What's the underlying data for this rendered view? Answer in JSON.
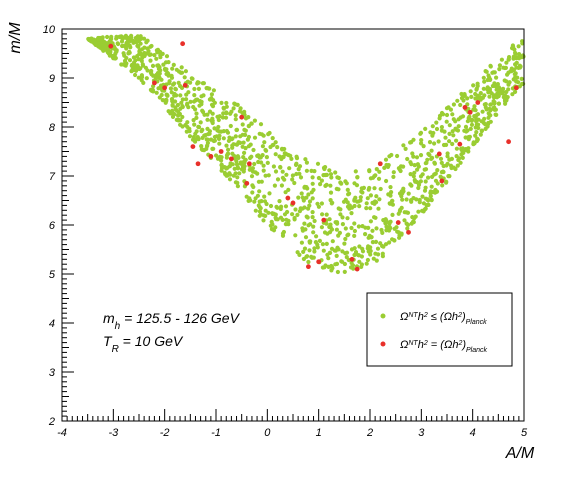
{
  "chart_data": {
    "type": "scatter",
    "title": "",
    "xlabel": "A/M",
    "ylabel": "m/M",
    "xlim": [
      -4,
      5
    ],
    "ylim": [
      2,
      10
    ],
    "x_ticks": [
      "-4",
      "-3",
      "-2",
      "-1",
      "0",
      "1",
      "2",
      "3",
      "4",
      "5"
    ],
    "y_ticks": [
      "2",
      "3",
      "4",
      "5",
      "6",
      "7",
      "8",
      "9",
      "10"
    ],
    "grid": false,
    "legend_position": "middle-right",
    "annotations": [
      {
        "text": "m",
        "sub": "h",
        "rest": " = 125.5 - 126 GeV"
      },
      {
        "text": "T",
        "sub": "R",
        "rest": " = 10 GeV"
      }
    ],
    "series": [
      {
        "name": "Ω^NT h² ≤ (Ωh²)_Planck",
        "color": "#9acd32",
        "generated": true,
        "n_points": 1500,
        "lower_envelope": [
          [
            -3.5,
            9.8
          ],
          [
            -2.5,
            9.0
          ],
          [
            -1.5,
            7.8
          ],
          [
            -0.8,
            7.0
          ],
          [
            0,
            6.0
          ],
          [
            0.8,
            5.2
          ],
          [
            1.5,
            5.0
          ],
          [
            2.2,
            5.3
          ],
          [
            3.0,
            6.2
          ],
          [
            3.8,
            7.3
          ],
          [
            4.5,
            8.3
          ],
          [
            5.0,
            8.9
          ]
        ],
        "upper_envelope": [
          [
            -3.5,
            9.8
          ],
          [
            -2.5,
            9.9
          ],
          [
            -1.5,
            9.1
          ],
          [
            -0.5,
            8.4
          ],
          [
            0.5,
            7.5
          ],
          [
            1.5,
            7.0
          ],
          [
            2.5,
            7.5
          ],
          [
            3.5,
            8.4
          ],
          [
            4.3,
            9.2
          ],
          [
            5.0,
            9.9
          ]
        ]
      },
      {
        "name": "Ω^NT h² = (Ωh²)_Planck",
        "color": "#e8302a",
        "x": [
          -3.05,
          -2.2,
          -2.0,
          -1.65,
          -1.6,
          -1.45,
          -1.35,
          -1.1,
          -0.9,
          -0.7,
          -0.5,
          -0.4,
          -0.35,
          0.4,
          0.5,
          0.8,
          1.0,
          1.1,
          1.65,
          1.75,
          2.2,
          2.55,
          2.75,
          3.35,
          3.4,
          3.75,
          3.85,
          3.95,
          4.1,
          4.7,
          4.85
        ],
        "y": [
          9.65,
          8.9,
          8.8,
          9.7,
          8.85,
          7.6,
          7.25,
          7.4,
          7.5,
          7.35,
          8.2,
          6.85,
          7.25,
          6.55,
          6.45,
          5.15,
          5.25,
          6.1,
          5.3,
          5.1,
          7.25,
          6.05,
          5.85,
          7.45,
          6.9,
          7.65,
          8.4,
          8.3,
          8.5,
          7.7,
          8.8
        ]
      }
    ]
  }
}
